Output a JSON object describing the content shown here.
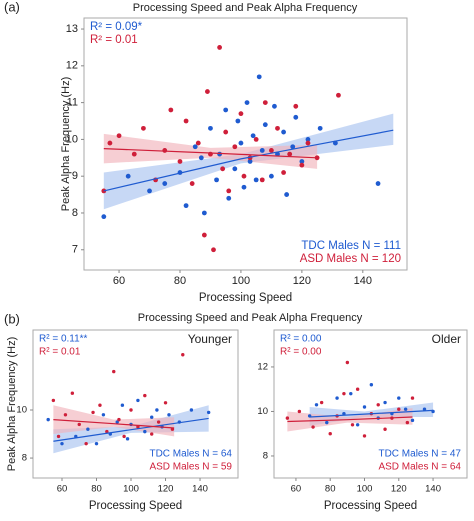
{
  "chart_data": [
    {
      "type": "scatter",
      "panel_label": "(a)",
      "title": "Processing Speed and Peak Alpha Frequency",
      "x_label": "Processing Speed",
      "y_label": "Peak Alpha Frequency (Hz)",
      "xlim": [
        48.5,
        154.5
      ],
      "ylim": [
        6.45,
        13.3
      ],
      "xticks": [
        60,
        80,
        100,
        120,
        140
      ],
      "yticks": [
        7,
        8,
        9,
        10,
        11,
        12,
        13
      ],
      "series": [
        {
          "name": "TDC Males N = 111",
          "color": "#1f5bd0",
          "band_color": "#a9c3ef",
          "r2": "R² = 0.09*",
          "x": [
            55,
            63,
            70,
            75,
            80,
            82,
            85,
            87,
            88,
            90,
            92,
            93,
            95,
            96,
            98,
            99,
            100,
            101,
            102,
            103,
            104,
            105,
            106,
            107,
            108,
            110,
            111,
            112,
            114,
            115,
            117,
            118,
            120,
            122,
            126,
            131,
            145
          ],
          "y": [
            7.9,
            9.0,
            8.6,
            8.8,
            9.1,
            8.2,
            9.8,
            9.5,
            8.0,
            10.3,
            8.9,
            9.6,
            10.8,
            8.4,
            9.2,
            10.5,
            9.9,
            8.7,
            11.0,
            9.4,
            10.1,
            8.9,
            11.7,
            9.7,
            10.4,
            9.0,
            10.9,
            9.6,
            10.2,
            8.5,
            9.8,
            10.6,
            9.4,
            10.0,
            10.3,
            9.9,
            8.8
          ],
          "fit": {
            "x": [
              55,
              100,
              150
            ],
            "y": [
              8.6,
              9.47,
              10.25
            ],
            "lower": [
              8.1,
              9.35,
              9.85
            ],
            "upper": [
              9.1,
              9.6,
              10.7
            ]
          }
        },
        {
          "name": "ASD Males N = 120",
          "color": "#cf1f3a",
          "band_color": "#f1b3bc",
          "r2": "R² = 0.01",
          "x": [
            55,
            57,
            60,
            65,
            68,
            72,
            75,
            77,
            80,
            82,
            84,
            86,
            88,
            89,
            90,
            91,
            93,
            94,
            95,
            96,
            98,
            100,
            101,
            103,
            105,
            107,
            108,
            110,
            112,
            114,
            116,
            118,
            120,
            122,
            125,
            132
          ],
          "y": [
            8.6,
            9.9,
            10.1,
            9.6,
            10.3,
            8.9,
            9.7,
            10.8,
            9.4,
            10.5,
            8.8,
            9.9,
            7.4,
            11.3,
            9.6,
            7.0,
            12.5,
            9.2,
            10.2,
            8.6,
            9.8,
            10.7,
            9.0,
            9.5,
            10.0,
            8.9,
            11.0,
            9.7,
            10.3,
            9.1,
            9.6,
            10.9,
            9.3,
            9.9,
            9.5,
            11.2
          ],
          "fit": {
            "x": [
              55,
              90,
              125
            ],
            "y": [
              9.75,
              9.63,
              9.5
            ],
            "lower": [
              9.35,
              9.5,
              9.2
            ],
            "upper": [
              10.15,
              9.77,
              9.85
            ]
          }
        }
      ]
    },
    {
      "type": "scatter",
      "panel_label": "(b)",
      "title": "Processing Speed and Peak Alpha Frequency",
      "subtitle": "Younger",
      "x_label": "Processing Speed",
      "y_label": "Peak Alpha Frequency (Hz)",
      "xlim": [
        43.2,
        162
      ],
      "ylim": [
        7.17,
        13.33
      ],
      "xticks": [
        60,
        80,
        100,
        120,
        140
      ],
      "yticks": [
        8,
        10
      ],
      "series": [
        {
          "name": "TDC Males N = 64",
          "color": "#1f5bd0",
          "band_color": "#a9c3ef",
          "r2": "R² = 0.11**",
          "x": [
            52,
            60,
            68,
            75,
            80,
            84,
            88,
            92,
            95,
            98,
            100,
            104,
            108,
            112,
            115,
            118,
            122,
            128,
            135,
            145
          ],
          "y": [
            9.6,
            8.6,
            8.9,
            9.2,
            8.6,
            9.8,
            9.0,
            9.5,
            10.2,
            8.8,
            9.4,
            10.4,
            9.1,
            9.7,
            10.0,
            9.3,
            9.8,
            9.5,
            10.0,
            9.9
          ],
          "fit": {
            "x": [
              55,
              100,
              145
            ],
            "y": [
              8.7,
              9.18,
              9.65
            ],
            "lower": [
              8.2,
              9.05,
              9.1
            ],
            "upper": [
              9.2,
              9.32,
              10.2
            ]
          }
        },
        {
          "name": "ASD Males N = 59",
          "color": "#cf1f3a",
          "band_color": "#f1b3bc",
          "r2": "R² = 0.01",
          "x": [
            55,
            58,
            62,
            66,
            70,
            74,
            78,
            82,
            86,
            90,
            93,
            96,
            100,
            104,
            108,
            112,
            116,
            120,
            124,
            130
          ],
          "y": [
            10.4,
            8.9,
            9.8,
            10.7,
            9.4,
            8.6,
            9.9,
            10.2,
            9.1,
            11.6,
            9.6,
            8.9,
            10.0,
            9.3,
            10.6,
            9.0,
            9.5,
            10.3,
            9.2,
            12.3
          ],
          "fit": {
            "x": [
              55,
              90,
              125
            ],
            "y": [
              9.6,
              9.43,
              9.25
            ],
            "lower": [
              9.0,
              9.3,
              8.9
            ],
            "upper": [
              10.2,
              9.6,
              9.7
            ]
          }
        }
      ]
    },
    {
      "type": "scatter",
      "subtitle": "Older",
      "x_label": "Processing Speed",
      "xlim": [
        47.2,
        159.8
      ],
      "ylim": [
        7.01,
        13.66
      ],
      "xticks": [
        60,
        80,
        100,
        120,
        140
      ],
      "yticks": [
        8,
        10,
        12
      ],
      "series": [
        {
          "name": "TDC Males N = 47",
          "color": "#1f5bd0",
          "band_color": "#a9c3ef",
          "r2": "R² = 0.00",
          "x": [
            68,
            72,
            78,
            84,
            88,
            92,
            96,
            100,
            104,
            108,
            112,
            116,
            120,
            124,
            128,
            135,
            140
          ],
          "y": [
            9.8,
            10.3,
            9.5,
            10.6,
            9.9,
            10.8,
            9.4,
            10.2,
            11.2,
            9.7,
            10.4,
            9.9,
            10.6,
            10.1,
            9.6,
            10.1,
            10.0
          ],
          "fit": {
            "x": [
              68,
              100,
              140
            ],
            "y": [
              9.75,
              9.88,
              10.05
            ],
            "lower": [
              9.35,
              9.75,
              9.75
            ],
            "upper": [
              10.2,
              10.0,
              10.4
            ]
          }
        },
        {
          "name": "ASD Males N = 64",
          "color": "#cf1f3a",
          "band_color": "#f1b3bc",
          "r2": "R² = 0.00",
          "x": [
            55,
            62,
            70,
            75,
            80,
            84,
            88,
            90,
            93,
            96,
            100,
            104,
            108,
            112,
            116,
            120,
            125,
            128
          ],
          "y": [
            9.7,
            10.0,
            9.3,
            10.4,
            9.0,
            9.8,
            10.8,
            12.2,
            9.4,
            11.0,
            8.9,
            9.9,
            10.3,
            9.2,
            9.7,
            10.1,
            9.5,
            10.6
          ],
          "fit": {
            "x": [
              55,
              90,
              128
            ],
            "y": [
              9.55,
              9.63,
              9.75
            ],
            "lower": [
              9.1,
              9.5,
              9.4
            ],
            "upper": [
              10.0,
              9.75,
              10.15
            ]
          }
        }
      ]
    }
  ]
}
